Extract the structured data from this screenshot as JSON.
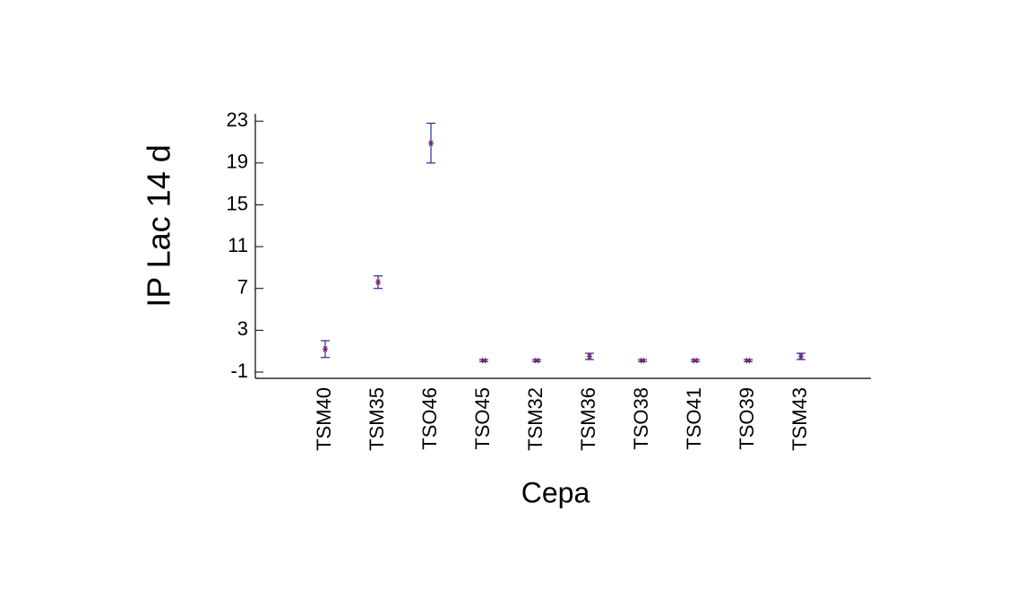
{
  "chart_data": {
    "type": "errorbar",
    "x_label": "Cepa",
    "y_label": "IP Lac 14 d",
    "categories": [
      "TSM40",
      "TSM35",
      "TSO46",
      "TSO45",
      "TSM32",
      "TSM36",
      "TSO38",
      "TSO41",
      "TSO39",
      "TSM43"
    ],
    "series": [
      {
        "values": [
          1.2,
          7.6,
          20.9,
          0.1,
          0.1,
          0.5,
          0.1,
          0.1,
          0.1,
          0.5
        ],
        "errors": [
          0.8,
          0.6,
          1.9,
          0.1,
          0.1,
          0.3,
          0.1,
          0.1,
          0.1,
          0.3
        ],
        "color": "#2b2b8f",
        "marker_color": "#8b1a6b"
      }
    ],
    "ylim": [
      -1.6,
      23.7
    ],
    "yticks": [
      -1,
      3,
      7,
      11,
      15,
      19,
      23
    ],
    "grid": false
  }
}
